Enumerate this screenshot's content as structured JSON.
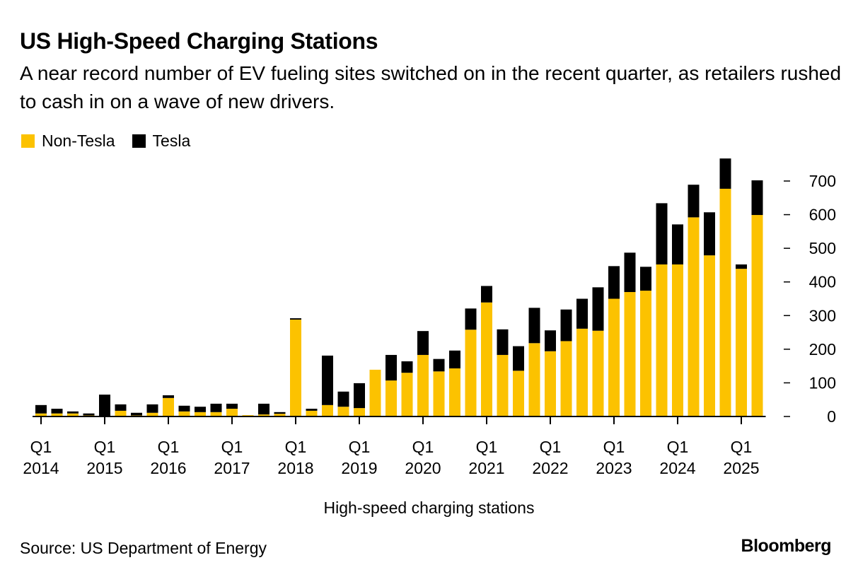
{
  "header": {
    "title": "US High-Speed Charging Stations",
    "subtitle": "A near record number of EV fueling sites switched on in the recent quarter, as retailers rushed to cash in on a wave of new drivers."
  },
  "footer": {
    "source": "Source: US Department of Energy",
    "brand": "Bloomberg"
  },
  "colors": {
    "non_tesla": "#FCC200",
    "tesla": "#000000"
  },
  "chart_data": {
    "type": "bar",
    "stacked": true,
    "title": "US High-Speed Charging Stations",
    "subtitle": "A near record number of EV fueling sites switched on in the recent quarter, as retailers rushed to cash in on a wave of new drivers.",
    "xlabel": "High-speed charging stations",
    "ylabel": "",
    "ylim": [
      0,
      700
    ],
    "yticks": [
      0,
      100,
      200,
      300,
      400,
      500,
      600,
      700
    ],
    "y_axis_side": "right",
    "grid": false,
    "legend": {
      "placement": "top-left",
      "entries": [
        "Non-Tesla",
        "Tesla"
      ]
    },
    "x_tick_labels": [
      {
        "index": 0,
        "line1": "Q1",
        "line2": "2014"
      },
      {
        "index": 4,
        "line1": "Q1",
        "line2": "2015"
      },
      {
        "index": 8,
        "line1": "Q1",
        "line2": "2016"
      },
      {
        "index": 12,
        "line1": "Q1",
        "line2": "2017"
      },
      {
        "index": 16,
        "line1": "Q1",
        "line2": "2018"
      },
      {
        "index": 20,
        "line1": "Q1",
        "line2": "2019"
      },
      {
        "index": 24,
        "line1": "Q1",
        "line2": "2020"
      },
      {
        "index": 28,
        "line1": "Q1",
        "line2": "2021"
      },
      {
        "index": 32,
        "line1": "Q1",
        "line2": "2022"
      },
      {
        "index": 36,
        "line1": "Q1",
        "line2": "2023"
      },
      {
        "index": 40,
        "line1": "Q1",
        "line2": "2024"
      },
      {
        "index": 44,
        "line1": "Q1",
        "line2": "2025"
      }
    ],
    "categories": [
      "Q1 2014",
      "Q2 2014",
      "Q3 2014",
      "Q4 2014",
      "Q1 2015",
      "Q2 2015",
      "Q3 2015",
      "Q4 2015",
      "Q1 2016",
      "Q2 2016",
      "Q3 2016",
      "Q4 2016",
      "Q1 2017",
      "Q2 2017",
      "Q3 2017",
      "Q4 2017",
      "Q1 2018",
      "Q2 2018",
      "Q3 2018",
      "Q4 2018",
      "Q1 2019",
      "Q2 2019",
      "Q3 2019",
      "Q4 2019",
      "Q1 2020",
      "Q2 2020",
      "Q3 2020",
      "Q4 2020",
      "Q1 2021",
      "Q2 2021",
      "Q3 2021",
      "Q4 2021",
      "Q1 2022",
      "Q2 2022",
      "Q3 2022",
      "Q4 2022",
      "Q1 2023",
      "Q2 2023",
      "Q3 2023",
      "Q4 2023",
      "Q1 2024",
      "Q2 2024",
      "Q3 2024",
      "Q4 2024",
      "Q1 2025",
      "Q2 2025"
    ],
    "series": [
      {
        "name": "Non-Tesla",
        "values": [
          9,
          9,
          9,
          3,
          2,
          17,
          3,
          11,
          55,
          15,
          13,
          13,
          23,
          4,
          6,
          8,
          288,
          17,
          34,
          29,
          25,
          139,
          107,
          130,
          183,
          134,
          143,
          258,
          339,
          183,
          136,
          218,
          194,
          224,
          261,
          255,
          350,
          370,
          374,
          452,
          452,
          592,
          479,
          677,
          439,
          599
        ]
      },
      {
        "name": "Tesla",
        "values": [
          25,
          14,
          6,
          6,
          63,
          19,
          8,
          25,
          8,
          17,
          16,
          25,
          15,
          0,
          32,
          5,
          4,
          6,
          147,
          45,
          74,
          0,
          76,
          34,
          71,
          37,
          53,
          63,
          49,
          76,
          73,
          105,
          62,
          94,
          89,
          129,
          97,
          117,
          71,
          182,
          119,
          97,
          128,
          90,
          13,
          103
        ]
      }
    ]
  }
}
